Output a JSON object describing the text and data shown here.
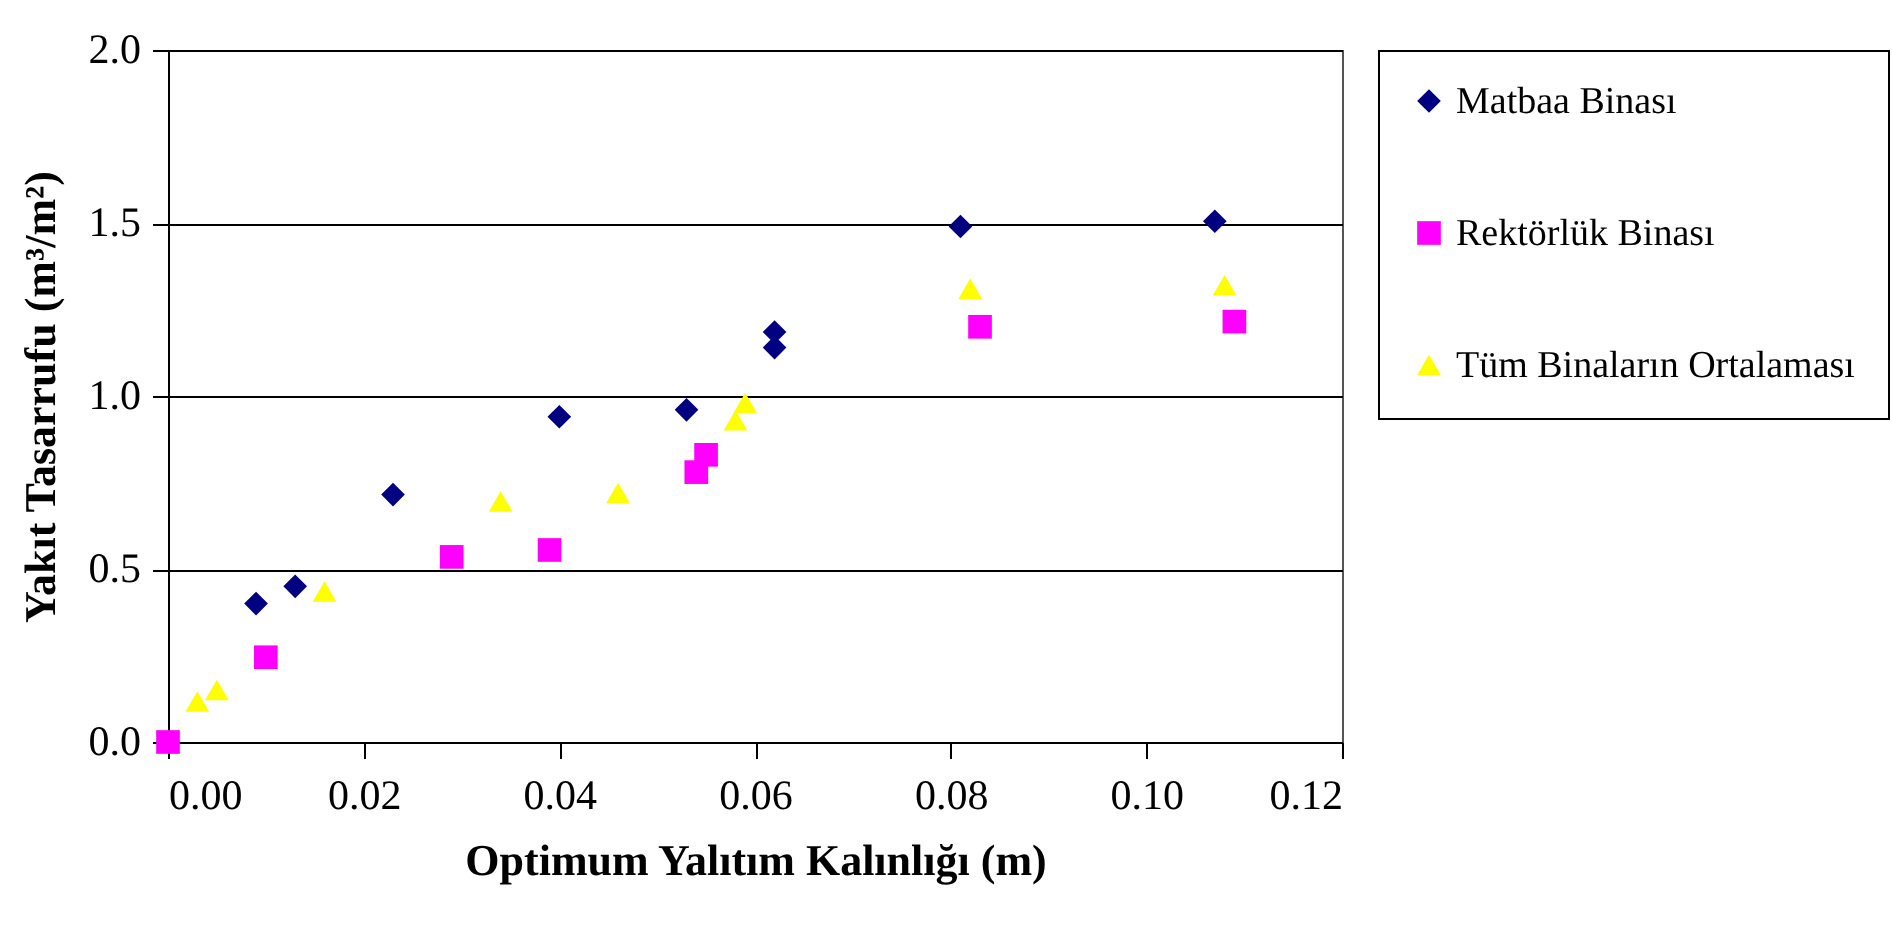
{
  "chart_data": {
    "type": "scatter",
    "xlabel": "Optimum Yalıtım Kalınlığı (m)",
    "ylabel": "Yakıt Tasarrufu (m³/m²)",
    "xlim": [
      0,
      0.12
    ],
    "ylim": [
      0,
      2
    ],
    "xticks": [
      {
        "value": 0,
        "label": "0.00"
      },
      {
        "value": 0.02,
        "label": "0.02"
      },
      {
        "value": 0.04,
        "label": "0.04"
      },
      {
        "value": 0.06,
        "label": "0.06"
      },
      {
        "value": 0.08,
        "label": "0.08"
      },
      {
        "value": 0.1,
        "label": "0.10"
      },
      {
        "value": 0.12,
        "label": "0.12"
      }
    ],
    "yticks": [
      {
        "value": 0,
        "label": "0.0"
      },
      {
        "value": 0.5,
        "label": "0.5"
      },
      {
        "value": 1,
        "label": "1.0"
      },
      {
        "value": 1.5,
        "label": "1.5"
      },
      {
        "value": 2,
        "label": "2.0"
      }
    ],
    "grid": "y",
    "legend": "right",
    "series": [
      {
        "name": "Matbaa Binası",
        "color": "#000080",
        "marker": "diamond",
        "x": [
          0.009,
          0.013,
          0.023,
          0.04,
          0.053,
          0.062,
          0.062,
          0.081,
          0.107
        ],
        "values": [
          0.4,
          0.45,
          0.715,
          0.94,
          0.96,
          1.185,
          1.14,
          1.49,
          1.505
        ]
      },
      {
        "name": "Rektörlük Binası",
        "color": "#ff00ff",
        "marker": "square",
        "x": [
          0,
          0.01,
          0.029,
          0.039,
          0.054,
          0.055,
          0.083,
          0.109
        ],
        "values": [
          0,
          0.245,
          0.535,
          0.555,
          0.78,
          0.83,
          1.2,
          1.215
        ]
      },
      {
        "name": "Tüm Binaların Ortalaması",
        "color": "#ffff00",
        "marker": "triangle",
        "x": [
          0.003,
          0.005,
          0.016,
          0.034,
          0.046,
          0.058,
          0.059,
          0.082,
          0.108
        ],
        "values": [
          0.117,
          0.15,
          0.435,
          0.695,
          0.72,
          0.93,
          0.98,
          1.31,
          1.32
        ]
      }
    ]
  }
}
